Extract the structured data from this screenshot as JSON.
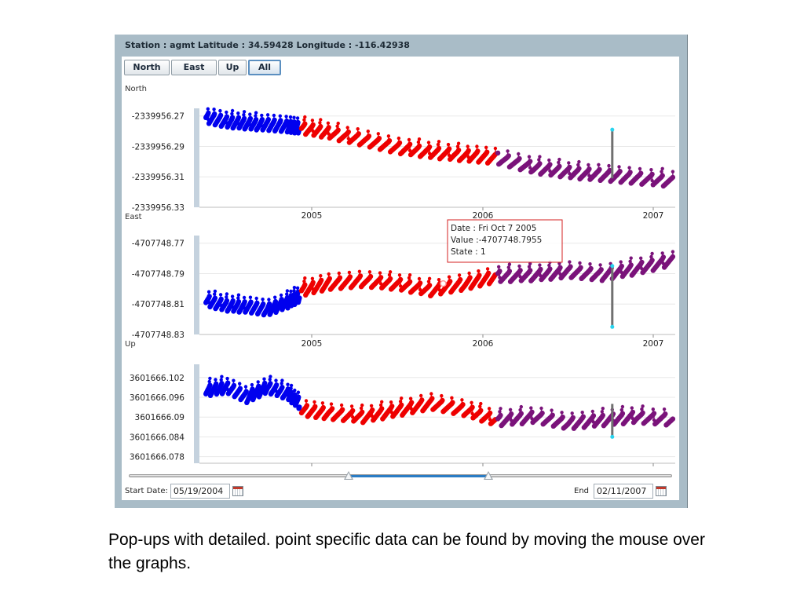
{
  "header": {
    "title": "Station : agmt Latitude : 34.59428 Longitude : -116.42938"
  },
  "tabs": [
    {
      "label": "North",
      "active": false
    },
    {
      "label": "East",
      "active": false
    },
    {
      "label": "Up",
      "active": false
    },
    {
      "label": "All",
      "active": true
    }
  ],
  "chart_data": [
    {
      "type": "scatter",
      "title": "North",
      "ytick_labels": [
        "-2339956.27",
        "-2339956.29",
        "-2339956.31",
        "-2339956.33"
      ],
      "ylim": [
        -2339956.33,
        -2339956.265
      ],
      "xtick_labels": [
        "2005",
        "2006",
        "2007"
      ],
      "xlim": [
        2004.38,
        2007.12
      ],
      "series": [
        {
          "color": "#0000ee",
          "x": [
            2004.38,
            2004.5,
            2004.62,
            2004.74,
            2004.86,
            2004.93
          ],
          "y": [
            -2339956.271,
            -2339956.274,
            -2339956.275,
            -2339956.276,
            -2339956.277,
            -2339956.278
          ]
        },
        {
          "color": "#ee0000",
          "x": [
            2004.94,
            2005.1,
            2005.3,
            2005.5,
            2005.7,
            2005.9,
            2006.08
          ],
          "y": [
            -2339956.278,
            -2339956.281,
            -2339956.286,
            -2339956.291,
            -2339956.294,
            -2339956.296,
            -2339956.298
          ]
        },
        {
          "color": "#7a137a",
          "x": [
            2006.09,
            2006.3,
            2006.5,
            2006.7,
            2006.9,
            2007.12
          ],
          "y": [
            -2339956.298,
            -2339956.304,
            -2339956.307,
            -2339956.309,
            -2339956.311,
            -2339956.313
          ]
        }
      ],
      "spike": {
        "x": 2006.76,
        "y_top": -2339956.279,
        "y_bottom": -2339956.311
      }
    },
    {
      "type": "scatter",
      "title": "East",
      "ytick_labels": [
        "-4707748.77",
        "-4707748.79",
        "-4707748.81",
        "-4707748.83"
      ],
      "ylim": [
        -4707748.83,
        -4707748.765
      ],
      "xtick_labels": [
        "2005",
        "2006",
        "2007"
      ],
      "xlim": [
        2004.38,
        2007.12
      ],
      "series": [
        {
          "color": "#0000ee",
          "x": [
            2004.38,
            2004.5,
            2004.62,
            2004.74,
            2004.86,
            2004.93
          ],
          "y": [
            -4707748.808,
            -4707748.811,
            -4707748.812,
            -4707748.814,
            -4707748.809,
            -4707748.805
          ]
        },
        {
          "color": "#ee0000",
          "x": [
            2004.94,
            2005.1,
            2005.3,
            2005.5,
            2005.7,
            2005.9,
            2006.08
          ],
          "y": [
            -4707748.801,
            -4707748.797,
            -4707748.795,
            -4707748.797,
            -4707748.801,
            -4707748.797,
            -4707748.792
          ]
        },
        {
          "color": "#7a137a",
          "x": [
            2006.09,
            2006.3,
            2006.5,
            2006.7,
            2006.9,
            2007.12
          ],
          "y": [
            -4707748.792,
            -4707748.791,
            -4707748.789,
            -4707748.791,
            -4707748.787,
            -4707748.781
          ]
        }
      ],
      "spike": {
        "x": 2006.76,
        "y_top": -4707748.785,
        "y_bottom": -4707748.825
      }
    },
    {
      "type": "scatter",
      "title": "Up",
      "ytick_labels": [
        "3601666.102",
        "3601666.096",
        "3601666.09",
        "3601666.084",
        "3601666.078"
      ],
      "ylim": [
        3601666.076,
        3601666.106
      ],
      "xtick_labels": [
        "2005",
        "2006",
        "2007"
      ],
      "xlim": [
        2004.38,
        2007.12
      ],
      "series": [
        {
          "color": "#0000ee",
          "x": [
            2004.38,
            2004.5,
            2004.62,
            2004.74,
            2004.86,
            2004.93
          ],
          "y": [
            3601666.098,
            3601666.099,
            3601666.096,
            3601666.099,
            3601666.097,
            3601666.094
          ]
        },
        {
          "color": "#ee0000",
          "x": [
            2004.94,
            2005.1,
            2005.3,
            2005.5,
            2005.7,
            2005.9,
            2006.08
          ],
          "y": [
            3601666.092,
            3601666.091,
            3601666.09,
            3601666.092,
            3601666.094,
            3601666.092,
            3601666.089
          ]
        },
        {
          "color": "#7a137a",
          "x": [
            2006.09,
            2006.3,
            2006.5,
            2006.7,
            2006.9,
            2007.12
          ],
          "y": [
            3601666.089,
            3601666.09,
            3601666.088,
            3601666.089,
            3601666.09,
            3601666.089
          ]
        }
      ],
      "spike": {
        "x": 2006.76,
        "y_top": 3601666.094,
        "y_bottom": 3601666.084
      }
    }
  ],
  "tooltip": {
    "date": "Date : Fri Oct 7 2005",
    "value": "Value :-4707748.7955",
    "state": "State : 1",
    "x": 2005.77,
    "y": -4707748.7955
  },
  "controls": {
    "start_label": "Start Date:",
    "start_value": "05/19/2004",
    "end_label": "End",
    "end_value": "02/11/2007",
    "range_start": 0.405,
    "range_end": 0.662
  },
  "caption": "Pop-ups with detailed. point specific data can be found by moving the mouse over the graphs."
}
